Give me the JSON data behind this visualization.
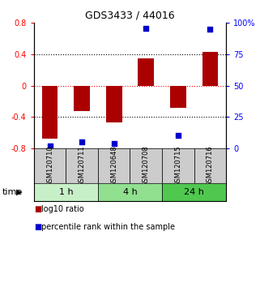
{
  "title": "GDS3433 / 44016",
  "samples": [
    "GSM120710",
    "GSM120711",
    "GSM120648",
    "GSM120708",
    "GSM120715",
    "GSM120716"
  ],
  "log10_ratio": [
    -0.68,
    -0.32,
    -0.47,
    0.35,
    -0.28,
    0.43
  ],
  "percentile_rank": [
    2,
    5,
    4,
    96,
    10,
    95
  ],
  "time_groups": [
    {
      "label": "1 h",
      "start": 0,
      "end": 2,
      "color": "#c8f0c8"
    },
    {
      "label": "4 h",
      "start": 2,
      "end": 4,
      "color": "#90e090"
    },
    {
      "label": "24 h",
      "start": 4,
      "end": 6,
      "color": "#50c850"
    }
  ],
  "bar_color": "#aa0000",
  "dot_color": "#0000cc",
  "ylim_left": [
    -0.8,
    0.8
  ],
  "ylim_right": [
    0,
    100
  ],
  "yticks_left": [
    -0.8,
    -0.4,
    0,
    0.4,
    0.8
  ],
  "yticks_right": [
    0,
    25,
    50,
    75,
    100
  ],
  "hlines_black": [
    -0.4,
    0.4
  ],
  "hline_red": 0,
  "background_color": "#ffffff",
  "sample_box_color": "#cccccc",
  "bar_width": 0.5,
  "title_fontsize": 9,
  "tick_fontsize": 7,
  "sample_fontsize": 6,
  "time_fontsize": 8,
  "legend_fontsize": 7
}
